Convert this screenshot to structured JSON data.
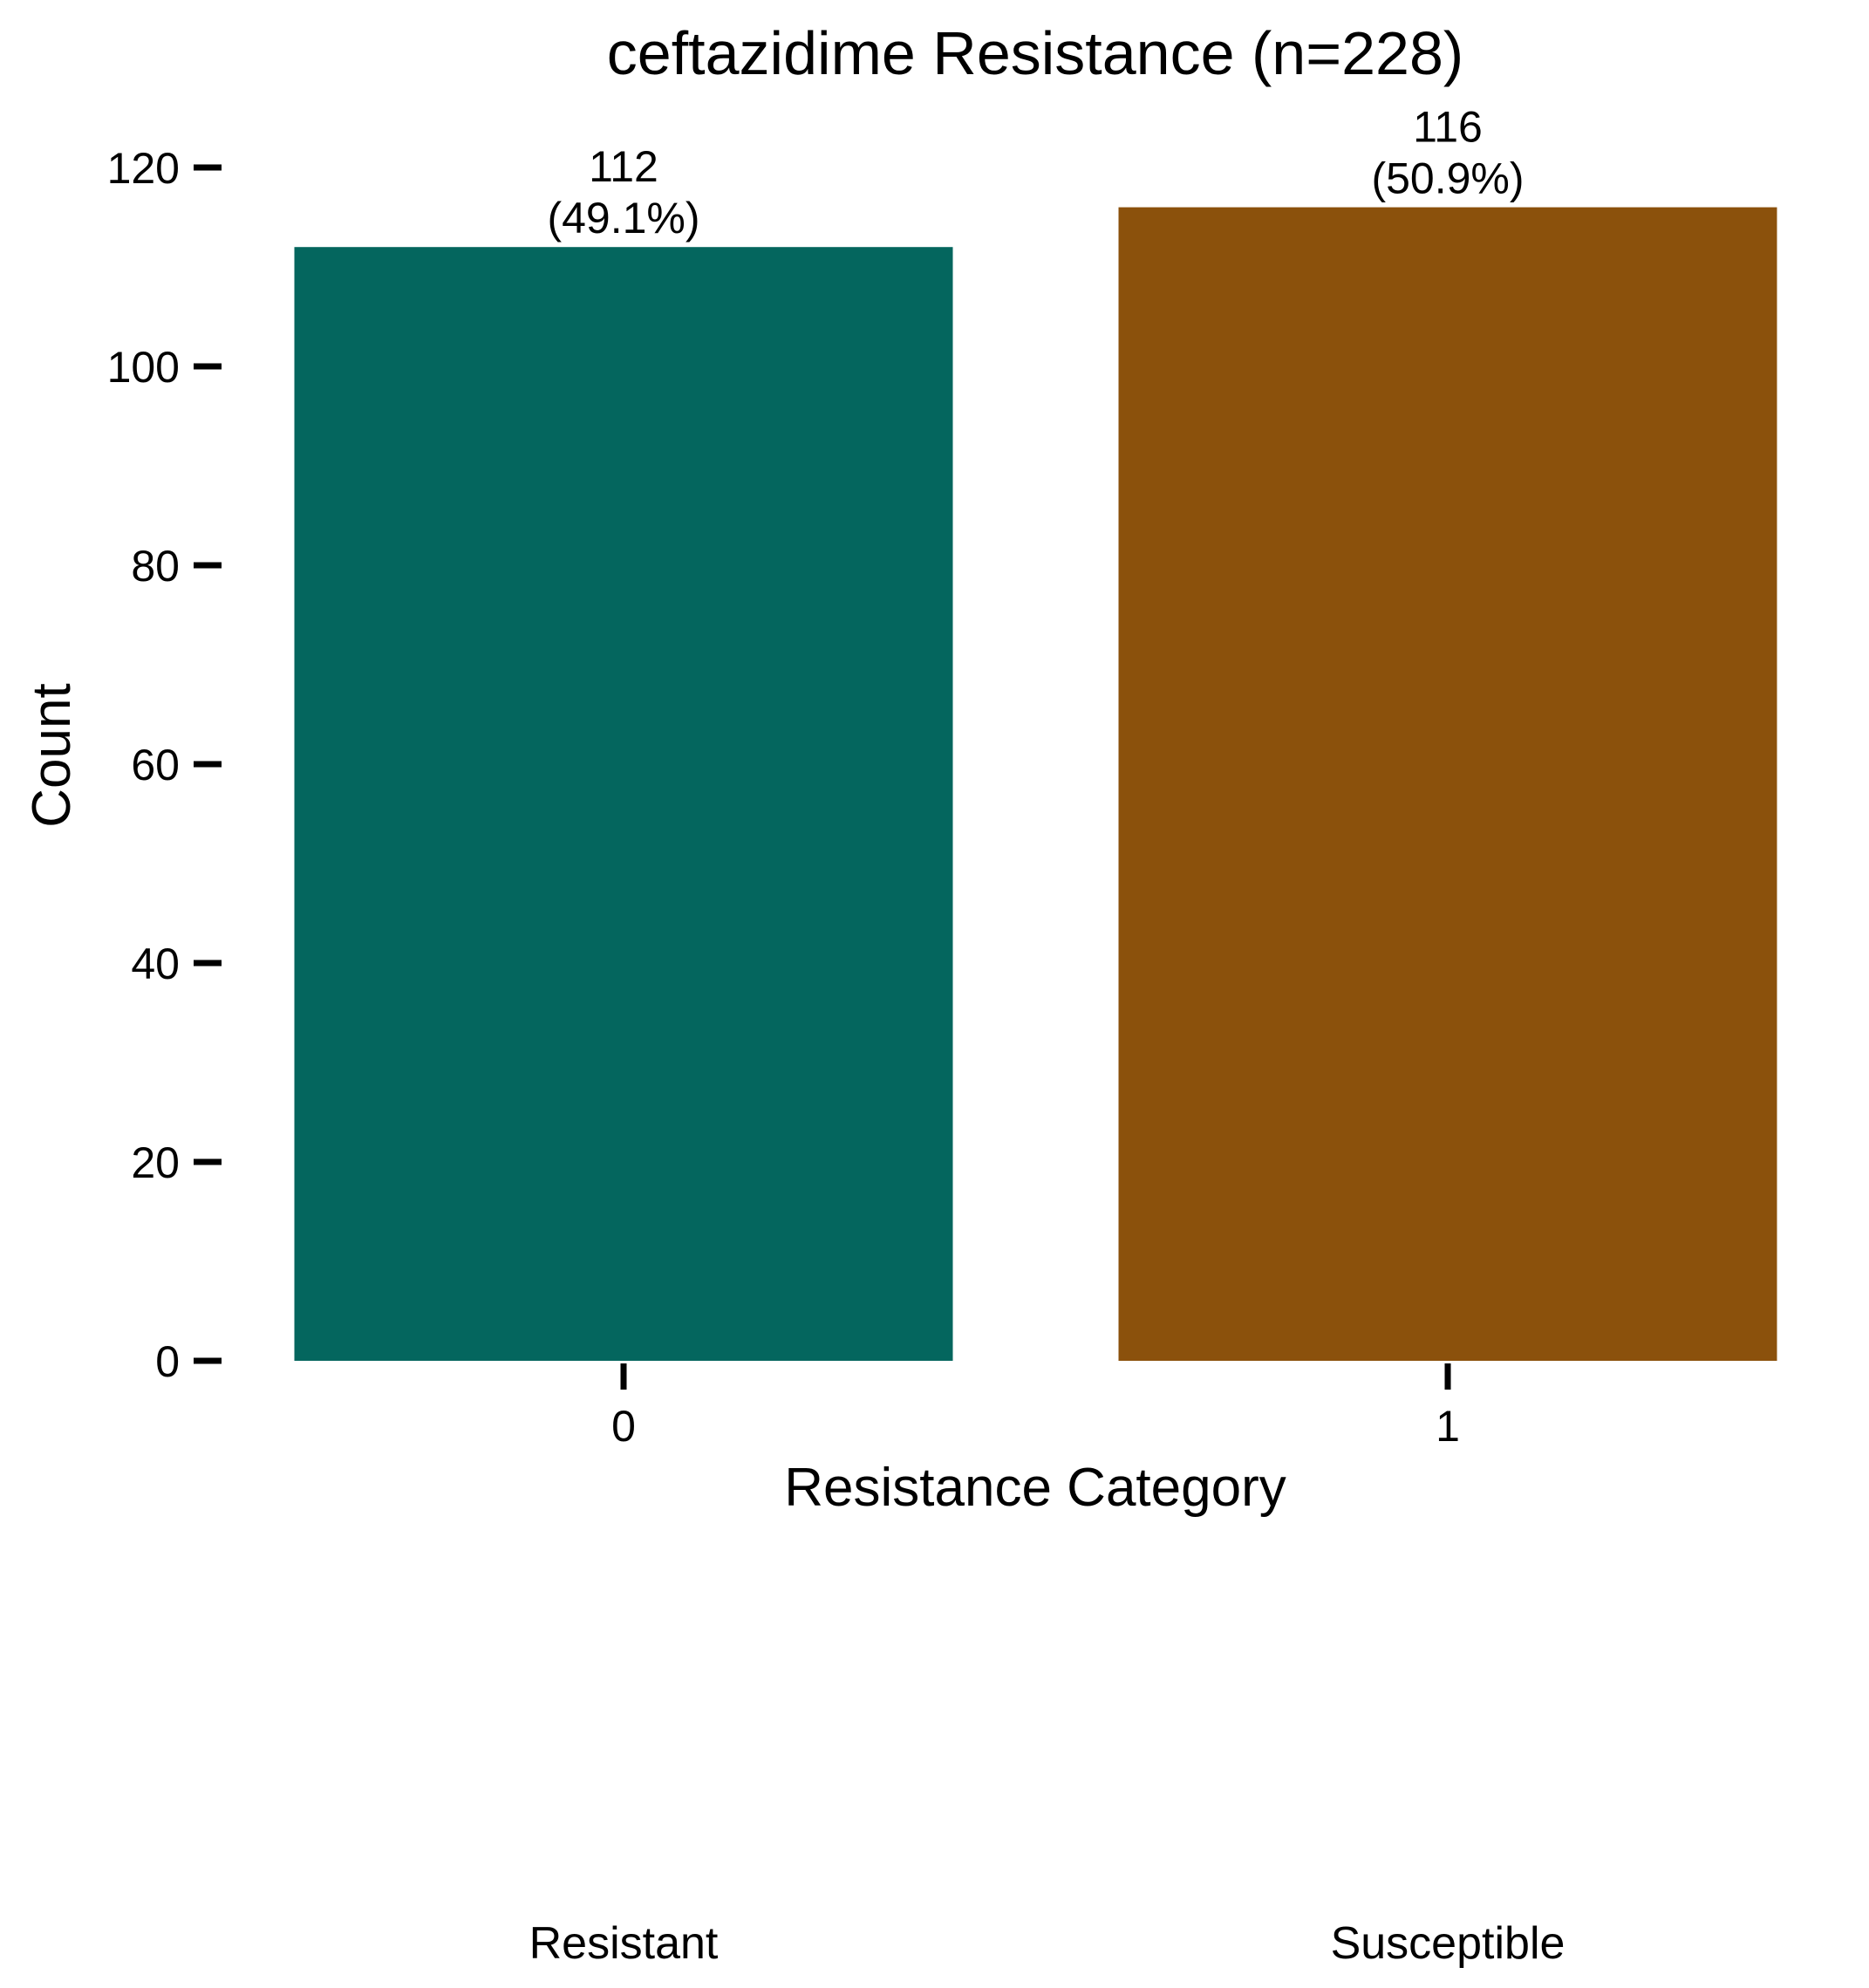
{
  "chart_data": {
    "type": "bar",
    "title": "ceftazidime Resistance (n=228)",
    "xlabel": "Resistance Category",
    "ylabel": "Count",
    "categories": [
      "0",
      "1"
    ],
    "category_names": [
      "Resistant",
      "Susceptible"
    ],
    "values": [
      112,
      116
    ],
    "percent_labels": [
      "(49.1%)",
      "(50.9%)"
    ],
    "colors": [
      "#04665E",
      "#8B510C"
    ],
    "yticks": [
      0,
      20,
      40,
      60,
      80,
      100,
      120
    ],
    "ylim": [
      0,
      122
    ],
    "grid": false,
    "legend": "none"
  }
}
